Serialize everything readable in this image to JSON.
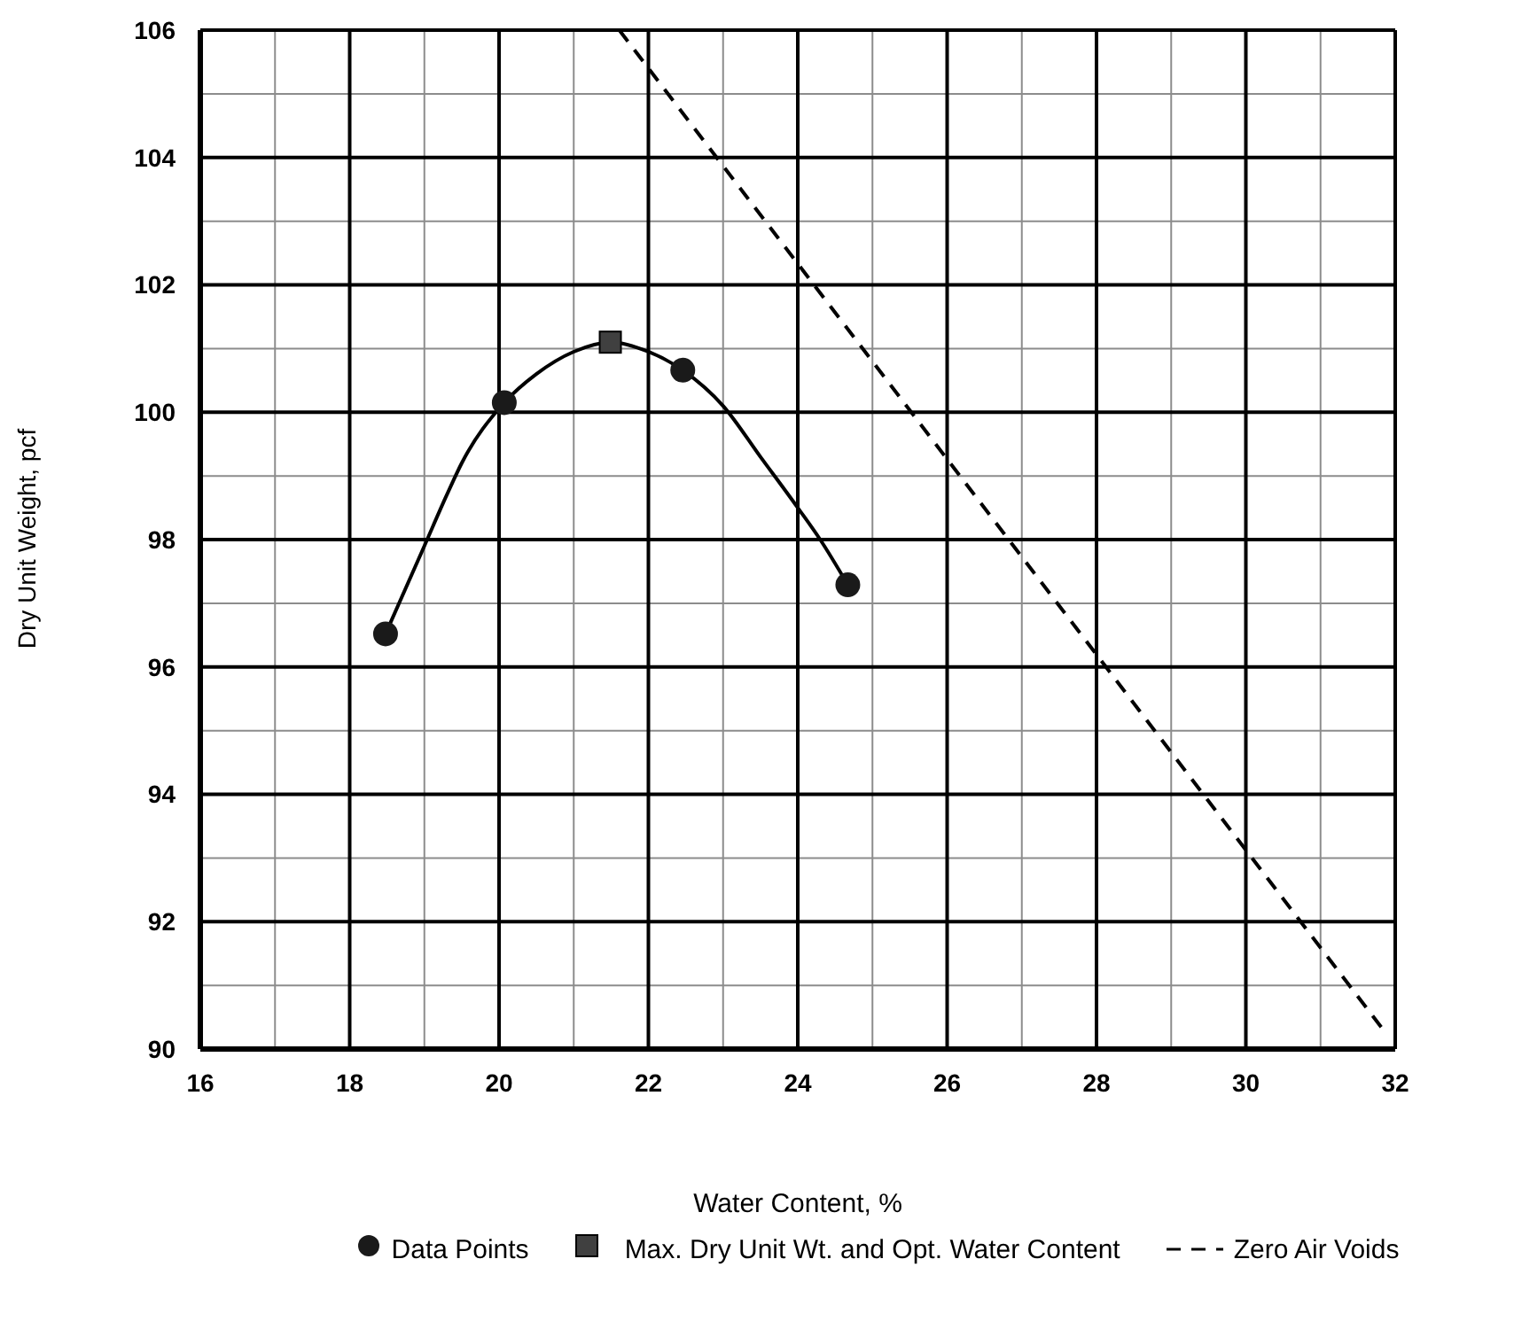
{
  "chart_data": {
    "type": "scatter",
    "xlabel": "Water Content, %",
    "ylabel": "Dry Unit Weight, pcf",
    "xlim": [
      16,
      32
    ],
    "ylim": [
      90,
      106
    ],
    "xticks": [
      16,
      {
        "value": 17,
        "label": null
      },
      18,
      {
        "value": 19,
        "label": null
      },
      20,
      {
        "value": 21,
        "label": null
      },
      22,
      {
        "value": 23,
        "label": null
      },
      24,
      {
        "value": 25,
        "label": null
      },
      26,
      {
        "value": 27,
        "label": null
      },
      28,
      {
        "value": 29,
        "label": null
      },
      30,
      {
        "value": 31,
        "label": null
      },
      32
    ],
    "yticks": [
      90,
      {
        "value": 91,
        "label": null
      },
      92,
      {
        "value": 93,
        "label": null
      },
      94,
      {
        "value": 95,
        "label": null
      },
      96,
      {
        "value": 97,
        "label": null
      },
      98,
      {
        "value": 99,
        "label": null
      },
      100,
      {
        "value": 101,
        "label": null
      },
      102,
      {
        "value": 103,
        "label": null
      },
      104,
      {
        "value": 105,
        "label": null
      },
      106
    ],
    "grid": true,
    "legend": "bottom",
    "series": [
      {
        "name": "Data Points",
        "marker": "circle",
        "color": "#1a1a1a",
        "x": [
          18.48,
          20.07,
          22.46,
          24.67
        ],
        "values": [
          96.52,
          100.15,
          100.66,
          97.29
        ]
      },
      {
        "type": "line",
        "marker": "none",
        "line_style": "solid",
        "color": "#000000",
        "x": [
          18.48,
          19.0,
          19.3,
          19.5,
          20.07,
          20.5,
          21.0,
          21.5,
          22.0,
          22.46,
          23.0,
          23.5,
          24.0,
          24.3,
          24.67
        ],
        "values": [
          96.52,
          97.9,
          98.7,
          99.2,
          100.15,
          100.6,
          100.95,
          101.1,
          100.95,
          100.66,
          100.1,
          99.3,
          98.5,
          98.0,
          97.29
        ]
      },
      {
        "name": "Max. Dry Unit Wt. and Opt. Water Content",
        "marker": "square",
        "color": "#404040",
        "x": [
          21.49
        ],
        "values": [
          101.1
        ]
      },
      {
        "name": "Zero Air Voids",
        "type": "line",
        "marker": "none",
        "line_style": "dashed",
        "color": "#000000",
        "x": [
          21.61,
          31.88
        ],
        "values": [
          106,
          90.24
        ]
      }
    ]
  }
}
